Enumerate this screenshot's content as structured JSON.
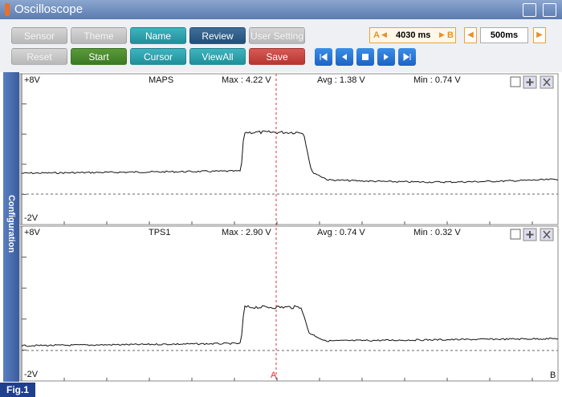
{
  "window": {
    "title": "Oscilloscope"
  },
  "toolbar": {
    "row1": [
      "Sensor",
      "Theme",
      "Name",
      "Review",
      "User Setting"
    ],
    "row2": [
      "Reset",
      "Start",
      "Cursor",
      "ViewAll",
      "Save"
    ]
  },
  "cursor_time": {
    "a_marker": "A",
    "value": "4030 ms",
    "b_marker": "B"
  },
  "time_div": "500ms",
  "sidebar": "Configuration",
  "panels": [
    {
      "top": "+8V",
      "name": "MAPS",
      "max": "Max : 4.22 V",
      "avg": "Avg : 1.38 V",
      "min": "Min : 0.74 V",
      "bottom": "-2V"
    },
    {
      "top": "+8V",
      "name": "TPS1",
      "max": "Max : 2.90 V",
      "avg": "Avg : 0.74 V",
      "min": "Min : 0.32 V",
      "bottom": "-2V"
    }
  ],
  "cursor_labels": {
    "a": "A",
    "b": "B"
  },
  "figure_label": "Fig.1"
}
